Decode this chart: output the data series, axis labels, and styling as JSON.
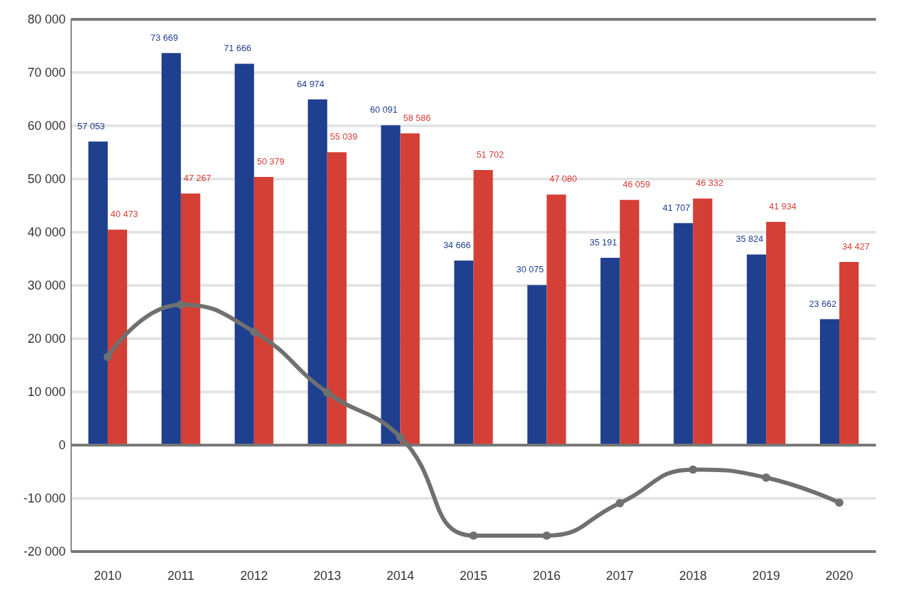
{
  "chart_data": {
    "type": "bar",
    "categories": [
      "2010",
      "2011",
      "2012",
      "2013",
      "2014",
      "2015",
      "2016",
      "2017",
      "2018",
      "2019",
      "2020"
    ],
    "series": [
      {
        "color": "#1f3f8f",
        "values": [
          57053,
          73669,
          71666,
          64974,
          60091,
          34666,
          30075,
          35191,
          41707,
          35824,
          23662
        ],
        "data_labels": true
      },
      {
        "color": "#d43f36",
        "values": [
          40473,
          47267,
          50379,
          55039,
          58586,
          51702,
          47080,
          46059,
          46332,
          41934,
          34427
        ],
        "data_labels": true
      },
      {
        "type": "line",
        "color": "#707070",
        "values": [
          16600,
          26400,
          21300,
          9900,
          1500,
          -17000,
          -17000,
          -10900,
          -4600,
          -6100,
          -10800
        ],
        "marker": "circle"
      }
    ],
    "ylim": [
      -20000,
      80000
    ],
    "yticks": [
      -20000,
      -10000,
      0,
      10000,
      20000,
      30000,
      40000,
      50000,
      60000,
      70000,
      80000
    ],
    "grid": "y"
  }
}
